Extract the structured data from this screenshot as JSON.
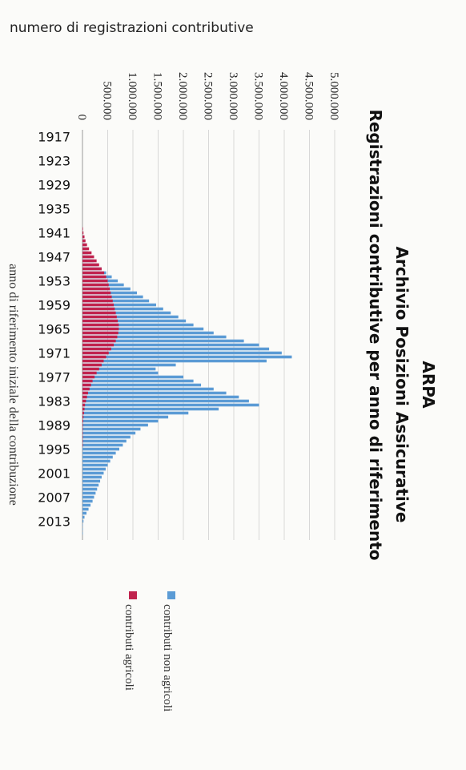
{
  "chart_data": {
    "type": "bar",
    "orientation": "vertical-bars-rotated",
    "title": "ARPA",
    "subtitle1": "Archivio Posizioni Assicurative",
    "subtitle2": "Registrazioni contributive per anno di riferimento",
    "ylabel": "numero di registrazioni contributive",
    "xlabel": "anno di riferimento iniziale della contribuzione",
    "ylim": [
      0,
      5000000
    ],
    "y_ticks": [
      {
        "value": 0,
        "label": "0"
      },
      {
        "value": 500000,
        "label": "500.000"
      },
      {
        "value": 1000000,
        "label": "1.000.000"
      },
      {
        "value": 1500000,
        "label": "1.500.000"
      },
      {
        "value": 2000000,
        "label": "2.000.000"
      },
      {
        "value": 2500000,
        "label": "2.500.000"
      },
      {
        "value": 3000000,
        "label": "3.000.000"
      },
      {
        "value": 3500000,
        "label": "3.500.000"
      },
      {
        "value": 4000000,
        "label": "4.000.000"
      },
      {
        "value": 4500000,
        "label": "4.500.000"
      },
      {
        "value": 5000000,
        "label": "5.000.000"
      }
    ],
    "category_labels": [
      "1917",
      "1923",
      "1929",
      "1935",
      "1941",
      "1947",
      "1953",
      "1959",
      "1965",
      "1971",
      "1977",
      "1983",
      "1989",
      "1995",
      "2001",
      "2007",
      "2013"
    ],
    "year_start": 1917,
    "year_end": 2016,
    "grid": true,
    "legend_position": "right",
    "series": [
      {
        "name": "contributi non agricoli",
        "color": "#5b9bd5",
        "values": [
          0,
          0,
          0,
          0,
          0,
          0,
          0,
          0,
          0,
          0,
          0,
          0,
          0,
          0,
          0,
          0,
          0,
          0,
          0,
          0,
          0,
          0,
          0,
          0,
          0,
          30000,
          40000,
          60000,
          80000,
          110000,
          160000,
          220000,
          300000,
          380000,
          470000,
          580000,
          700000,
          820000,
          950000,
          1080000,
          1200000,
          1320000,
          1460000,
          1600000,
          1750000,
          1900000,
          2050000,
          2200000,
          2400000,
          2600000,
          2850000,
          3200000,
          3500000,
          3700000,
          3950000,
          4150000,
          3650000,
          1850000,
          1450000,
          1500000,
          2000000,
          2200000,
          2350000,
          2600000,
          2850000,
          3100000,
          3300000,
          3500000,
          2700000,
          2100000,
          1700000,
          1500000,
          1300000,
          1150000,
          1050000,
          950000,
          870000,
          800000,
          730000,
          660000,
          600000,
          550000,
          500000,
          460000,
          420000,
          380000,
          350000,
          320000,
          290000,
          260000,
          230000,
          200000,
          160000,
          120000,
          80000,
          40000,
          20000,
          8000,
          3000,
          1000
        ]
      },
      {
        "name": "contributi agricoli",
        "color": "#c0234e",
        "values": [
          0,
          0,
          0,
          0,
          0,
          0,
          0,
          0,
          0,
          0,
          0,
          0,
          0,
          0,
          0,
          0,
          0,
          0,
          0,
          0,
          0,
          0,
          0,
          10000,
          20000,
          40000,
          60000,
          90000,
          130000,
          180000,
          230000,
          280000,
          330000,
          380000,
          430000,
          470000,
          500000,
          520000,
          540000,
          560000,
          580000,
          600000,
          620000,
          640000,
          660000,
          680000,
          700000,
          720000,
          720000,
          710000,
          690000,
          660000,
          620000,
          570000,
          520000,
          470000,
          420000,
          380000,
          330000,
          280000,
          240000,
          200000,
          170000,
          140000,
          110000,
          90000,
          70000,
          50000,
          40000,
          30000,
          20000,
          15000,
          10000,
          8000,
          5000,
          3000,
          2000,
          1000,
          0,
          0,
          0,
          0,
          0,
          0,
          0,
          0,
          0,
          0,
          0,
          0,
          0,
          0,
          0,
          0,
          0,
          0,
          0,
          0,
          0,
          0
        ]
      }
    ]
  }
}
